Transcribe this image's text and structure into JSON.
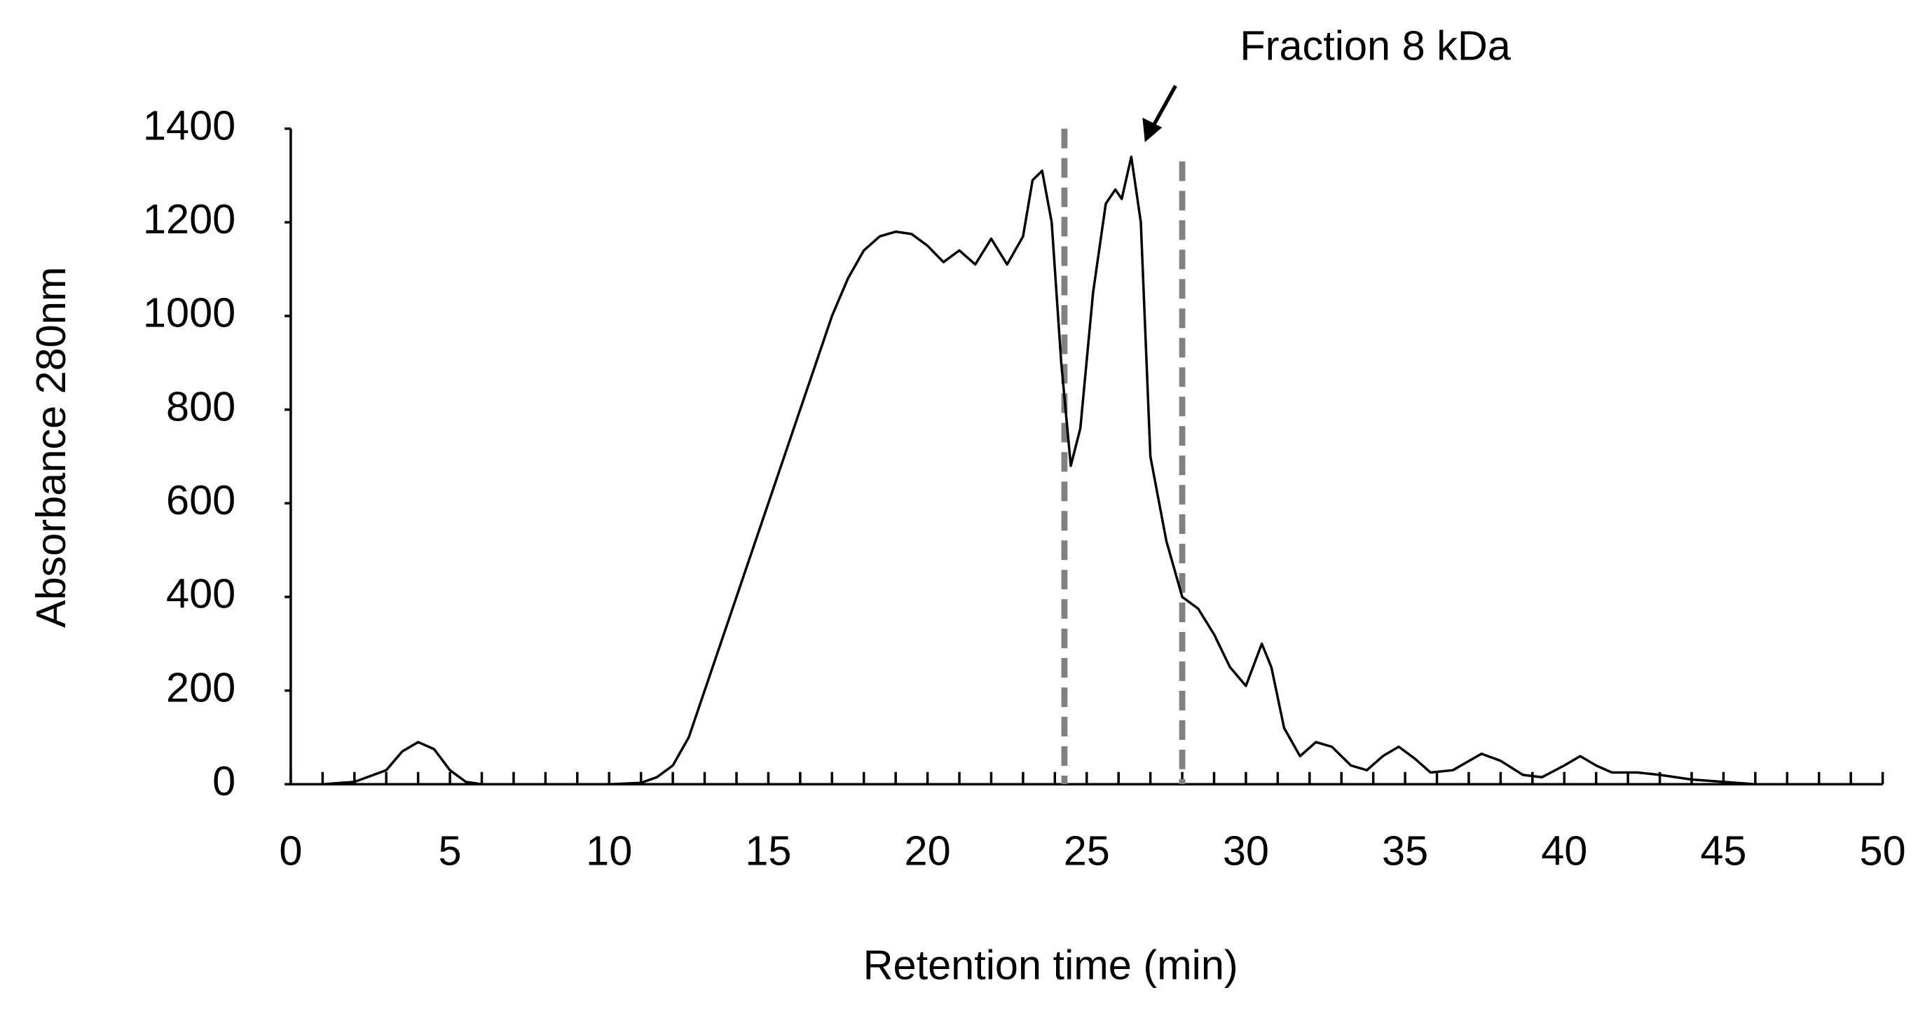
{
  "chart_data": {
    "type": "line",
    "xlabel": "Retention time (min)",
    "ylabel": "Absorbance  280nm",
    "annotation": "Fraction 8 kDa",
    "x": [
      0,
      1,
      2,
      3,
      3.5,
      4,
      4.5,
      5,
      5.5,
      6,
      8,
      10,
      11,
      11.5,
      12,
      12.5,
      13,
      13.5,
      14,
      14.5,
      15,
      15.5,
      16,
      16.5,
      17,
      17.5,
      18,
      18.5,
      19,
      19.5,
      20,
      20.5,
      21,
      21.5,
      22,
      22.5,
      23,
      23.3,
      23.6,
      23.9,
      24.2,
      24.5,
      24.8,
      25.2,
      25.6,
      25.9,
      26.1,
      26.4,
      26.7,
      27,
      27.5,
      28,
      28.5,
      29,
      29.5,
      30,
      30.5,
      30.8,
      31.2,
      31.7,
      32.2,
      32.7,
      33.3,
      33.8,
      34.3,
      34.8,
      35.3,
      35.8,
      36.5,
      37.4,
      38,
      38.7,
      39.3,
      40,
      40.5,
      41,
      41.5,
      42.3,
      43,
      44,
      45,
      46,
      50
    ],
    "series": [
      {
        "color": "#000000",
        "values": [
          0,
          0,
          5,
          30,
          70,
          90,
          75,
          30,
          5,
          0,
          0,
          0,
          3,
          15,
          40,
          100,
          200,
          300,
          400,
          500,
          600,
          700,
          800,
          900,
          1000,
          1080,
          1140,
          1170,
          1180,
          1175,
          1150,
          1115,
          1140,
          1110,
          1165,
          1110,
          1170,
          1290,
          1310,
          1200,
          900,
          680,
          760,
          1050,
          1240,
          1270,
          1250,
          1340,
          1200,
          700,
          520,
          400,
          375,
          320,
          250,
          210,
          300,
          250,
          120,
          60,
          90,
          80,
          40,
          30,
          60,
          80,
          55,
          25,
          30,
          65,
          50,
          20,
          15,
          40,
          60,
          40,
          25,
          25,
          20,
          10,
          5,
          0,
          0
        ]
      }
    ],
    "vlines": [
      {
        "x": 24.3,
        "top": 1400,
        "color": "#808080"
      },
      {
        "x": 28.0,
        "top": 1330,
        "color": "#808080"
      }
    ],
    "xlim": [
      0,
      50
    ],
    "xticks": [
      0,
      5,
      10,
      15,
      20,
      25,
      30,
      35,
      40,
      45,
      50
    ],
    "minor_per_major": 5,
    "ylim": [
      0,
      1400
    ],
    "yticks": [
      0,
      200,
      400,
      600,
      800,
      1000,
      1200,
      1400
    ]
  }
}
